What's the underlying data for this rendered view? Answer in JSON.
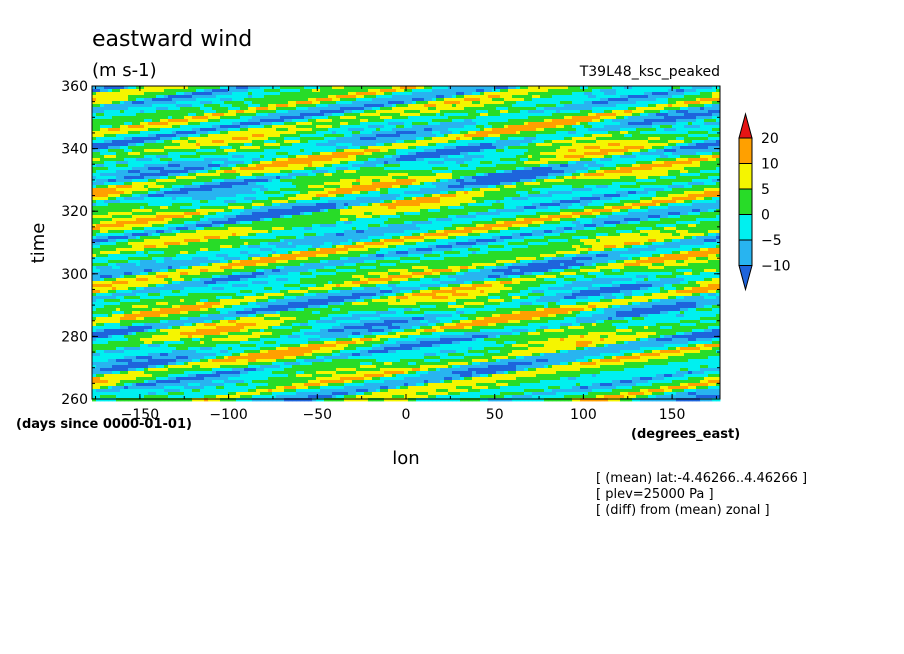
{
  "title": "eastward wind",
  "units": "(m s-1)",
  "run_label": "T39L48_ksc_peaked",
  "notes": [
    "[ (mean) lat:-4.46266..4.46266 ]",
    "[ plev=25000 Pa ]",
    "[ (diff) from (mean) zonal ]"
  ],
  "chart_data": {
    "type": "heatmap",
    "title": "eastward wind",
    "xlabel": "lon",
    "ylabel": "time",
    "x_units": "(degrees_east)",
    "y_units": "(days since 0000-01-01)",
    "xlim": [
      -177,
      177
    ],
    "ylim": [
      260,
      360
    ],
    "x_ticks": [
      -150,
      -100,
      -50,
      0,
      50,
      100,
      150
    ],
    "y_ticks": [
      260,
      280,
      300,
      320,
      340,
      360
    ],
    "grid": false,
    "colorbar": {
      "levels": [
        -10,
        -5,
        0,
        5,
        10,
        20
      ],
      "level_labels": [
        "-10",
        "-5",
        "0",
        "5",
        "10",
        "20"
      ],
      "colors": [
        "#1e64dc",
        "#28b4f0",
        "#00f0f0",
        "#28dc28",
        "#f5f500",
        "#ffa000",
        "#e61414"
      ],
      "extend": "both"
    }
  }
}
